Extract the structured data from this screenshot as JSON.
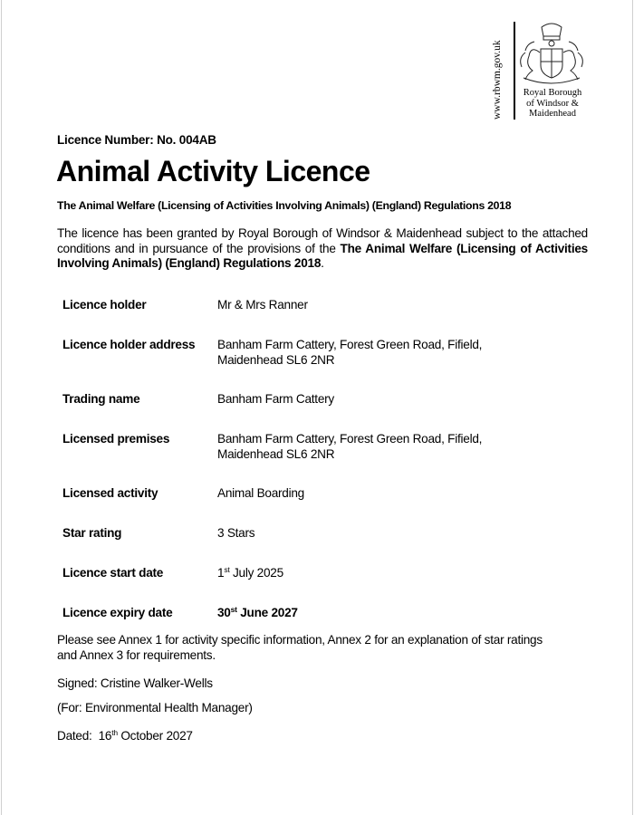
{
  "header": {
    "website": "www.rbwm.gov.uk",
    "org_name_lines": [
      "Royal Borough",
      "of Windsor &",
      "Maidenhead"
    ],
    "logo": "royal-borough-crest"
  },
  "licence_number": "Licence Number: No. 004AB",
  "title": "Animal Activity Licence",
  "subtitle": "The Animal Welfare (Licensing of Activities Involving Animals) (England) Regulations 2018",
  "intro": {
    "text": "The licence has been granted by Royal Borough of Windsor & Maidenhead subject to the attached conditions and in pursuance of the provisions of the ",
    "bold": "The Animal Welfare (Licensing of Activities Involving Animals) (England) Regulations 2018",
    "end": "."
  },
  "details": [
    {
      "label": "Licence holder",
      "value": "Mr & Mrs Ranner"
    },
    {
      "label": "Licence holder address",
      "value_lines": [
        "Banham Farm Cattery, Forest Green Road, Fifield,",
        "Maidenhead SL6 2NR"
      ]
    },
    {
      "label": "Trading name",
      "value": "Banham Farm Cattery"
    },
    {
      "label": "Licensed premises",
      "value_lines": [
        "Banham Farm Cattery, Forest Green Road, Fifield,",
        "Maidenhead SL6 2NR"
      ]
    },
    {
      "label": "Licensed activity",
      "value": "Animal Boarding"
    },
    {
      "label": "Star rating",
      "value": "3 Stars"
    },
    {
      "label": "Licence start date",
      "day": "1",
      "suffix": "st",
      "rest": " July 2025"
    },
    {
      "label": "Licence expiry date",
      "day": "30",
      "suffix": "st",
      "rest": " June 2027"
    }
  ],
  "annex_note_lines": [
    "Please see Annex 1 for activity specific information, Annex 2 for an explanation of star ratings",
    "and Annex 3 for requirements."
  ],
  "signed": "Signed: Cristine Walker-Wells",
  "for": "(For: Environmental Health Manager)",
  "dated": {
    "prefix": "Dated:  16",
    "suffix": "th",
    "rest": " October 2027"
  }
}
